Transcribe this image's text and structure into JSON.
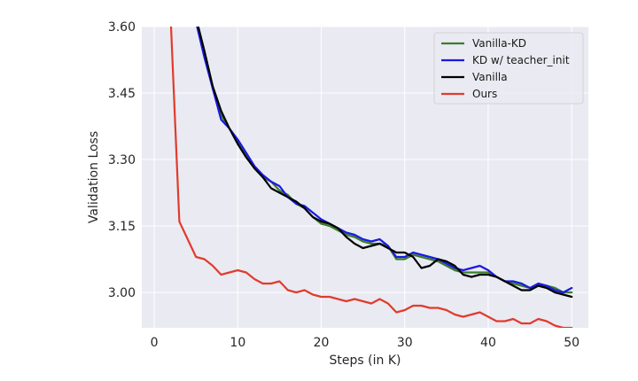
{
  "chart_data": {
    "type": "line",
    "title": "",
    "xlabel": "Steps (in K)",
    "ylabel": "Validation Loss",
    "xlim": [
      -1.5,
      52
    ],
    "ylim": [
      2.92,
      3.6
    ],
    "xticks": [
      0,
      10,
      20,
      30,
      40,
      50
    ],
    "yticks": [
      3.0,
      3.15,
      3.3,
      3.45,
      3.6
    ],
    "ytick_labels": [
      "3.00",
      "3.15",
      "3.30",
      "3.45",
      "3.60"
    ],
    "grid": true,
    "legend_position": "top-right",
    "x": [
      2,
      3,
      4,
      5,
      6,
      7,
      8,
      9,
      10,
      11,
      12,
      13,
      14,
      15,
      16,
      17,
      18,
      19,
      20,
      21,
      22,
      23,
      24,
      25,
      26,
      27,
      28,
      29,
      30,
      31,
      32,
      33,
      34,
      35,
      36,
      37,
      38,
      39,
      40,
      41,
      42,
      43,
      44,
      45,
      46,
      47,
      48,
      49,
      50
    ],
    "series": [
      {
        "name": "Vanilla-KD",
        "color": "#3a7d2c",
        "values": [
          null,
          null,
          null,
          3.62,
          3.54,
          3.46,
          3.4,
          3.37,
          3.34,
          3.31,
          3.28,
          3.26,
          3.25,
          3.23,
          3.22,
          3.2,
          3.19,
          3.17,
          3.155,
          3.15,
          3.14,
          3.13,
          3.125,
          3.115,
          3.11,
          3.11,
          3.105,
          3.075,
          3.075,
          3.085,
          3.08,
          3.075,
          3.07,
          3.06,
          3.05,
          3.045,
          3.045,
          3.045,
          3.045,
          3.035,
          3.025,
          3.02,
          3.015,
          3.01,
          3.015,
          3.015,
          3.01,
          3.0,
          3.0
        ]
      },
      {
        "name": "KD w/ teacher_init",
        "color": "#1a1ae0",
        "values": [
          null,
          null,
          null,
          3.61,
          3.53,
          3.46,
          3.39,
          3.37,
          3.345,
          3.315,
          3.285,
          3.265,
          3.25,
          3.24,
          3.215,
          3.2,
          3.195,
          3.18,
          3.165,
          3.155,
          3.145,
          3.135,
          3.13,
          3.12,
          3.115,
          3.12,
          3.105,
          3.08,
          3.08,
          3.09,
          3.085,
          3.08,
          3.075,
          3.065,
          3.055,
          3.05,
          3.055,
          3.06,
          3.05,
          3.035,
          3.025,
          3.025,
          3.02,
          3.01,
          3.02,
          3.015,
          3.005,
          3.0,
          3.01
        ]
      },
      {
        "name": "Vanilla",
        "color": "#000000",
        "values": [
          null,
          null,
          null,
          3.62,
          3.545,
          3.465,
          3.41,
          3.37,
          3.335,
          3.305,
          3.28,
          3.26,
          3.235,
          3.225,
          3.215,
          3.205,
          3.19,
          3.17,
          3.16,
          3.155,
          3.145,
          3.125,
          3.11,
          3.1,
          3.105,
          3.11,
          3.1,
          3.09,
          3.09,
          3.08,
          3.055,
          3.06,
          3.075,
          3.07,
          3.06,
          3.04,
          3.035,
          3.04,
          3.04,
          3.035,
          3.025,
          3.015,
          3.005,
          3.005,
          3.015,
          3.01,
          3.0,
          2.995,
          2.99
        ]
      },
      {
        "name": "Ours",
        "color": "#e03c2c",
        "values": [
          3.6,
          3.16,
          3.12,
          3.08,
          3.075,
          3.06,
          3.04,
          3.045,
          3.05,
          3.045,
          3.03,
          3.02,
          3.02,
          3.025,
          3.005,
          3.0,
          3.005,
          2.995,
          2.99,
          2.99,
          2.985,
          2.98,
          2.985,
          2.98,
          2.975,
          2.985,
          2.975,
          2.955,
          2.96,
          2.97,
          2.97,
          2.965,
          2.965,
          2.96,
          2.95,
          2.945,
          2.95,
          2.955,
          2.945,
          2.935,
          2.935,
          2.94,
          2.93,
          2.93,
          2.94,
          2.935,
          2.925,
          2.92,
          2.92
        ]
      }
    ]
  }
}
